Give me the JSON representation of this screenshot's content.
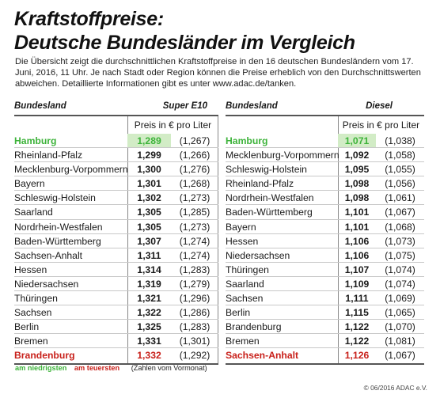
{
  "title_line1": "Kraftstoffpreise:",
  "title_line2": "Deutsche Bundesländer im Vergleich",
  "description": "Die Übersicht zeigt die durchschnittlichen Kraftstoffpreise in den 16 deutschen Bundesländern vom 17. Juni, 2016, 11 Uhr. Je nach Stadt oder Region können die Preise erheblich von den Durchschnittswerten abweichen. Detaillierte Informationen gibt es unter www.adac.de/tanken.",
  "legend": {
    "lowest": "am niedrigsten",
    "highest": "am teuersten",
    "previous_note": "(Zahlen vom Vormonat)"
  },
  "credit": "© 06/2016 ADAC e.V.",
  "colors": {
    "lowest": "#3db33a",
    "highest": "#c8201a",
    "lowest_bg": "#d2ecc6"
  },
  "chart_data": [
    {
      "type": "table",
      "column_header": "Bundesland",
      "fuel": "Super E10",
      "unit": "Preis in € pro Liter",
      "rows": [
        {
          "state": "Hamburg",
          "price": "1,289",
          "previous": "(1,267)",
          "mark": "low"
        },
        {
          "state": "Rheinland-Pfalz",
          "price": "1,299",
          "previous": "(1,266)",
          "mark": ""
        },
        {
          "state": "Mecklenburg-Vorpommern",
          "price": "1,300",
          "previous": "(1,276)",
          "mark": ""
        },
        {
          "state": "Bayern",
          "price": "1,301",
          "previous": "(1,268)",
          "mark": ""
        },
        {
          "state": "Schleswig-Holstein",
          "price": "1,302",
          "previous": "(1,273)",
          "mark": ""
        },
        {
          "state": "Saarland",
          "price": "1,305",
          "previous": "(1,285)",
          "mark": ""
        },
        {
          "state": "Nordrhein-Westfalen",
          "price": "1,305",
          "previous": "(1,273)",
          "mark": ""
        },
        {
          "state": "Baden-Württemberg",
          "price": "1,307",
          "previous": "(1,274)",
          "mark": ""
        },
        {
          "state": "Sachsen-Anhalt",
          "price": "1,311",
          "previous": "(1,274)",
          "mark": ""
        },
        {
          "state": "Hessen",
          "price": "1,314",
          "previous": "(1,283)",
          "mark": ""
        },
        {
          "state": "Niedersachsen",
          "price": "1,319",
          "previous": "(1,279)",
          "mark": ""
        },
        {
          "state": "Thüringen",
          "price": "1,321",
          "previous": "(1,296)",
          "mark": ""
        },
        {
          "state": "Sachsen",
          "price": "1,322",
          "previous": "(1,286)",
          "mark": ""
        },
        {
          "state": "Berlin",
          "price": "1,325",
          "previous": "(1,283)",
          "mark": ""
        },
        {
          "state": "Bremen",
          "price": "1,331",
          "previous": "(1,301)",
          "mark": ""
        },
        {
          "state": "Brandenburg",
          "price": "1,332",
          "previous": "(1,292)",
          "mark": "high"
        }
      ]
    },
    {
      "type": "table",
      "column_header": "Bundesland",
      "fuel": "Diesel",
      "unit": "Preis in € pro Liter",
      "rows": [
        {
          "state": "Hamburg",
          "price": "1,071",
          "previous": "(1,038)",
          "mark": "low"
        },
        {
          "state": "Mecklenburg-Vorpommern",
          "price": "1,092",
          "previous": "(1,058)",
          "mark": ""
        },
        {
          "state": "Schleswig-Holstein",
          "price": "1,095",
          "previous": "(1,055)",
          "mark": ""
        },
        {
          "state": "Rheinland-Pfalz",
          "price": "1,098",
          "previous": "(1,056)",
          "mark": ""
        },
        {
          "state": "Nordrhein-Westfalen",
          "price": "1,098",
          "previous": "(1,061)",
          "mark": ""
        },
        {
          "state": "Baden-Württemberg",
          "price": "1,101",
          "previous": "(1,067)",
          "mark": ""
        },
        {
          "state": "Bayern",
          "price": "1,101",
          "previous": "(1,068)",
          "mark": ""
        },
        {
          "state": "Hessen",
          "price": "1,106",
          "previous": "(1,073)",
          "mark": ""
        },
        {
          "state": "Niedersachsen",
          "price": "1,106",
          "previous": "(1,075)",
          "mark": ""
        },
        {
          "state": "Thüringen",
          "price": "1,107",
          "previous": "(1,074)",
          "mark": ""
        },
        {
          "state": "Saarland",
          "price": "1,109",
          "previous": "(1,074)",
          "mark": ""
        },
        {
          "state": "Sachsen",
          "price": "1,111",
          "previous": "(1,069)",
          "mark": ""
        },
        {
          "state": "Berlin",
          "price": "1,115",
          "previous": "(1,065)",
          "mark": ""
        },
        {
          "state": "Brandenburg",
          "price": "1,122",
          "previous": "(1,070)",
          "mark": ""
        },
        {
          "state": "Bremen",
          "price": "1,122",
          "previous": "(1,081)",
          "mark": ""
        },
        {
          "state": "Sachsen-Anhalt",
          "price": "1,126",
          "previous": "(1,067)",
          "mark": "high"
        }
      ]
    }
  ]
}
